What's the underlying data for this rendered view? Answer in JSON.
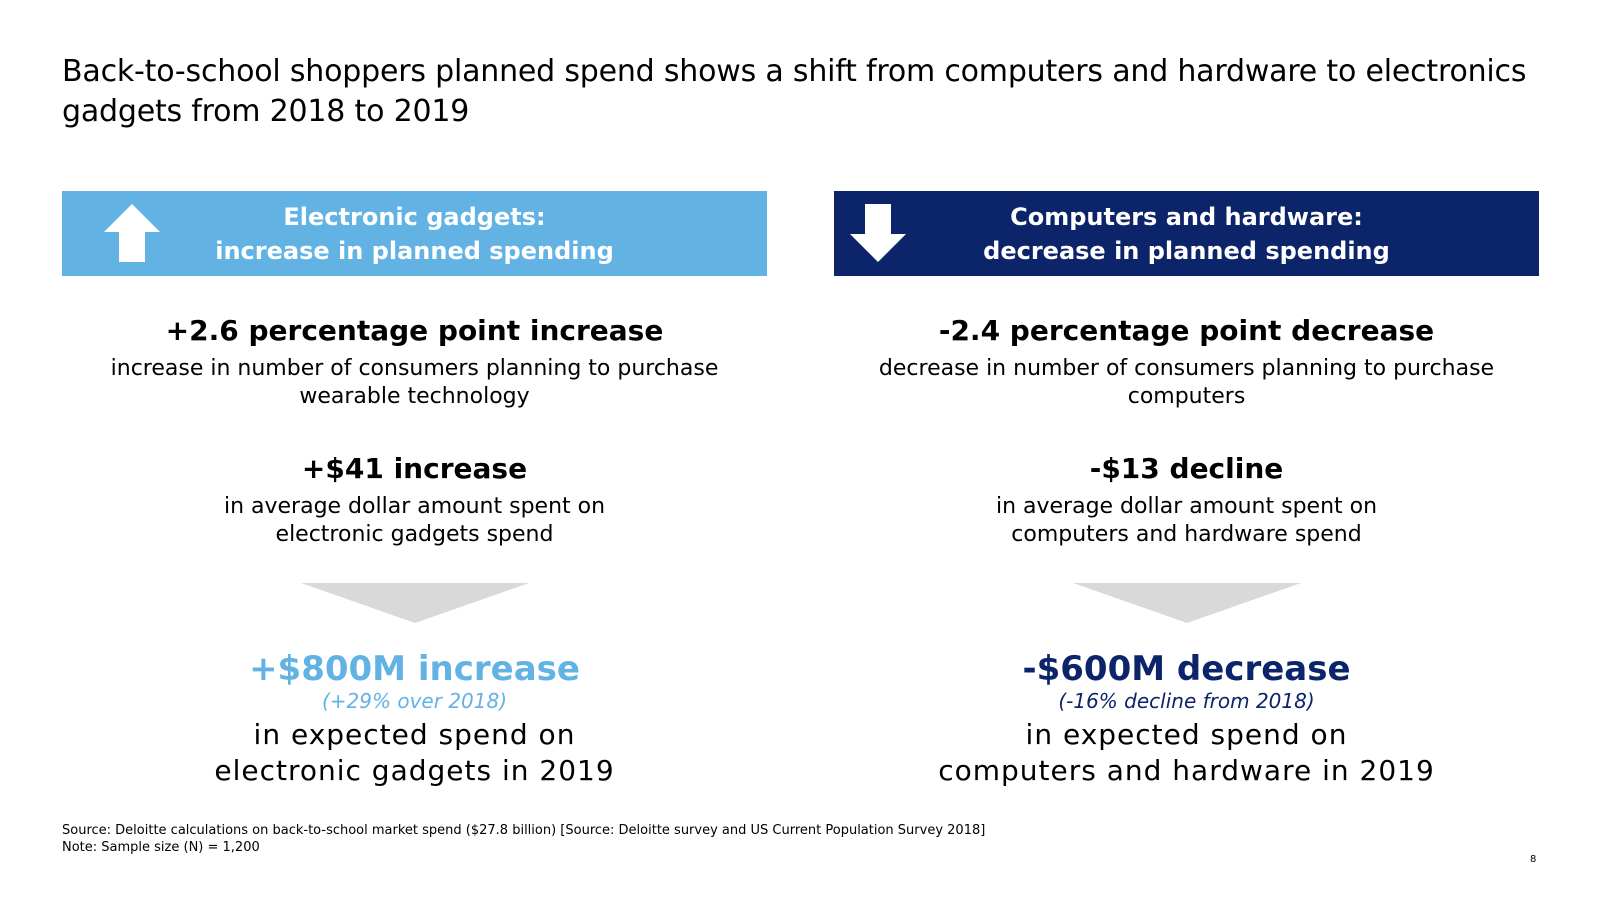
{
  "title": "Back-to-school shoppers planned spend shows a shift from computers and hardware to electronics gadgets from 2018 to 2019",
  "colors": {
    "light_blue": "#62b3e4",
    "navy": "#0c2469",
    "chevron_gray": "#d9d9d9"
  },
  "left": {
    "banner": {
      "icon": "arrow-up-icon",
      "line1": "Electronic gadgets:",
      "line2": "increase in planned spending"
    },
    "stat1": {
      "headline": "+2.6 percentage point increase",
      "desc_line1": "increase in number of consumers planning to purchase",
      "desc_line2": "wearable technology"
    },
    "stat2": {
      "headline": "+$41 increase",
      "desc_line1": "in average dollar amount spent on",
      "desc_line2": "electronic gadgets spend"
    },
    "result": {
      "headline": "+$800M increase",
      "note": "(+29% over 2018)",
      "desc_line1": "in expected spend on",
      "desc_line2": "electronic gadgets in 2019"
    }
  },
  "right": {
    "banner": {
      "icon": "arrow-down-icon",
      "line1": "Computers and hardware:",
      "line2": "decrease in planned spending"
    },
    "stat1": {
      "headline": "-2.4 percentage point decrease",
      "desc_line1": "decrease in number of consumers planning to purchase",
      "desc_line2": "computers"
    },
    "stat2": {
      "headline": "-$13 decline",
      "desc_line1": "in average dollar amount spent on",
      "desc_line2": "computers and hardware spend"
    },
    "result": {
      "headline": "-$600M decrease",
      "note": "(-16% decline from 2018)",
      "desc_line1": "in expected spend on",
      "desc_line2": "computers and hardware in 2019"
    }
  },
  "footer": {
    "source": "Source: Deloitte calculations on back-to-school market spend ($27.8 billion) [Source: Deloitte survey and US Current Population Survey 2018]",
    "note": "Note: Sample size (N) = 1,200"
  },
  "page_number": "8"
}
